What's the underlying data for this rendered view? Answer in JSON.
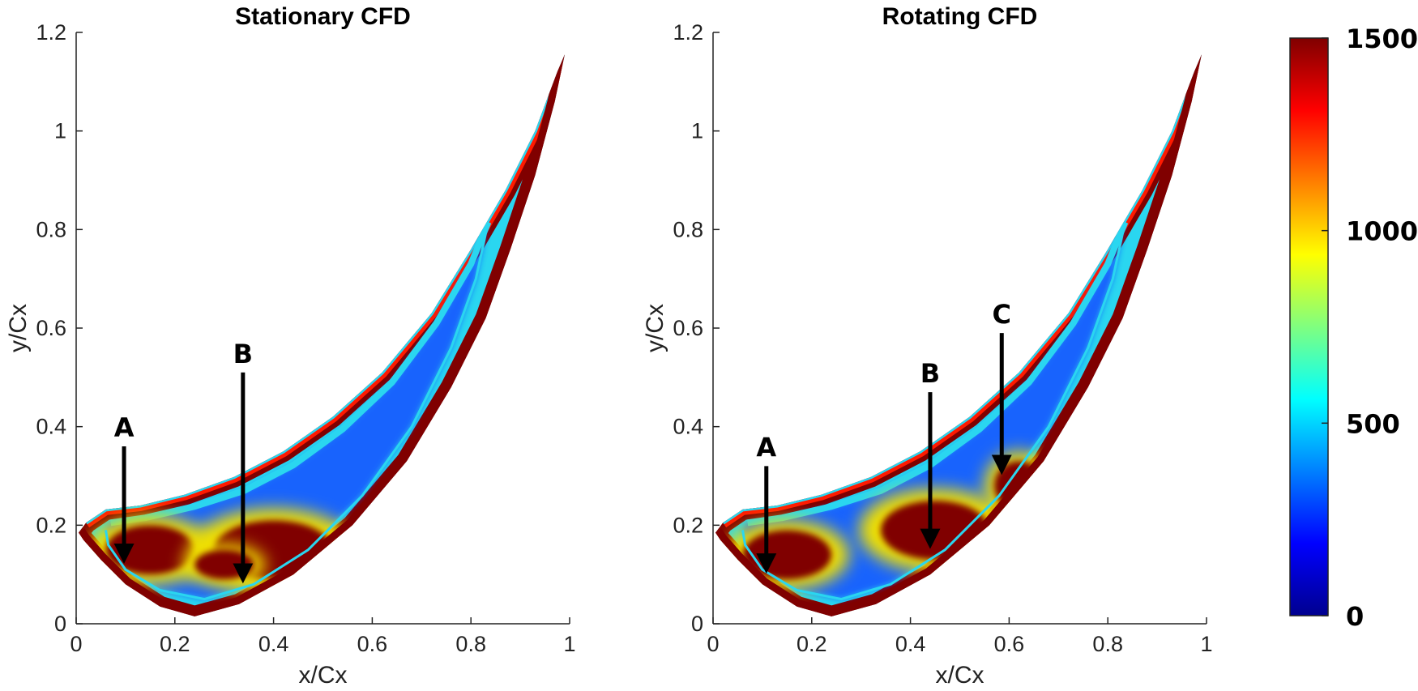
{
  "chart_data": [
    {
      "type": "heatmap",
      "title": "Stationary CFD",
      "xlabel": "x/Cx",
      "ylabel": "y/Cx",
      "xlim": [
        0,
        1
      ],
      "ylim": [
        0,
        1.2
      ],
      "xticks": [
        "0",
        "0.2",
        "0.4",
        "0.6",
        "0.8",
        "1"
      ],
      "yticks": [
        "0",
        "0.2",
        "0.4",
        "0.6",
        "0.8",
        "1",
        "1.2"
      ],
      "annotations": [
        {
          "label": "A",
          "x": 0.097,
          "y_start": 0.36,
          "y_end": 0.13
        },
        {
          "label": "B",
          "x": 0.338,
          "y_start": 0.51,
          "y_end": 0.09
        }
      ],
      "hotspots": [
        {
          "x": 0.15,
          "y": 0.15,
          "rx": 0.09,
          "ry": 0.05
        },
        {
          "x": 0.4,
          "y": 0.15,
          "rx": 0.12,
          "ry": 0.06
        },
        {
          "x": 0.3,
          "y": 0.12,
          "rx": 0.06,
          "ry": 0.03
        }
      ]
    },
    {
      "type": "heatmap",
      "title": "Rotating CFD",
      "xlabel": "x/Cx",
      "ylabel": "y/Cx",
      "xlim": [
        0,
        1
      ],
      "ylim": [
        0,
        1.2
      ],
      "xticks": [
        "0",
        "0.2",
        "0.4",
        "0.6",
        "0.8",
        "1"
      ],
      "yticks": [
        "0",
        "0.2",
        "0.4",
        "0.6",
        "0.8",
        "1",
        "1.2"
      ],
      "annotations": [
        {
          "label": "A",
          "x": 0.108,
          "y_start": 0.32,
          "y_end": 0.11
        },
        {
          "label": "B",
          "x": 0.44,
          "y_start": 0.47,
          "y_end": 0.16
        },
        {
          "label": "C",
          "x": 0.585,
          "y_start": 0.59,
          "y_end": 0.31
        }
      ],
      "hotspots": [
        {
          "x": 0.15,
          "y": 0.14,
          "rx": 0.09,
          "ry": 0.05
        },
        {
          "x": 0.45,
          "y": 0.19,
          "rx": 0.11,
          "ry": 0.06
        },
        {
          "x": 0.62,
          "y": 0.28,
          "rx": 0.05,
          "ry": 0.05
        }
      ]
    }
  ],
  "colorbar": {
    "min": 0,
    "max": 1500,
    "ticks": [
      "0",
      "500",
      "1000",
      "1500"
    ],
    "colormap": "jet",
    "colors": [
      "#00008f",
      "#0000ff",
      "#00ffff",
      "#ffff00",
      "#ff0000",
      "#800000"
    ]
  },
  "colors": {
    "hot": "#800000",
    "red": "#ff1a00",
    "cyan": "#2ad6f0",
    "blue": "#1550ff",
    "yellow": "#f0e000"
  }
}
